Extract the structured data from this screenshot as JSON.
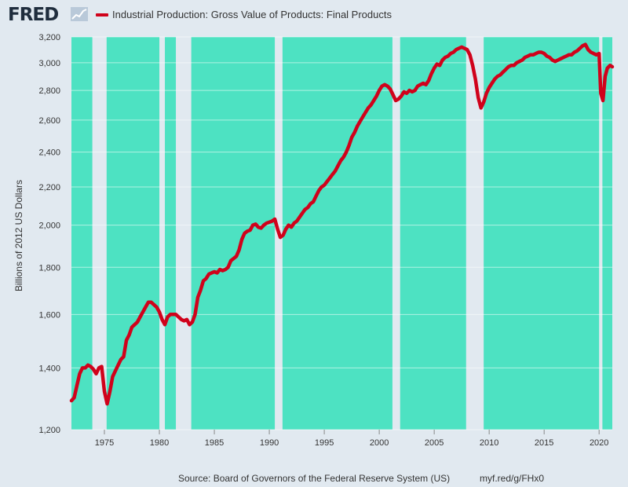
{
  "header": {
    "logo_text": "FRED",
    "legend_label": "Industrial Production: Gross Value of Products: Final Products",
    "series_color": "#d0021b"
  },
  "footer": {
    "source": "Source: Board of Governors of the Federal Reserve System (US)",
    "url": "myf.red/g/FHx0"
  },
  "chart_data": {
    "type": "line",
    "ylabel": "Billions of 2012 US Dollars",
    "yscale": "log",
    "ylim": [
      1200,
      3200
    ],
    "xlim": [
      1972.0,
      2021.2
    ],
    "yticks": [
      1200,
      1400,
      1600,
      1800,
      2000,
      2200,
      2400,
      2600,
      2800,
      3000,
      3200
    ],
    "ytick_labels": [
      "1,200",
      "1,400",
      "1,600",
      "1,800",
      "2,000",
      "2,200",
      "2,400",
      "2,600",
      "2,800",
      "3,000",
      "3,200"
    ],
    "xticks": [
      1975,
      1980,
      1985,
      1990,
      1995,
      2000,
      2005,
      2010,
      2015,
      2020
    ],
    "xtick_labels": [
      "1975",
      "1980",
      "1985",
      "1990",
      "1995",
      "2000",
      "2005",
      "2010",
      "2015",
      "2020"
    ],
    "plot_background": "#4de2c2",
    "recession_color": "#e1e9f0",
    "grid": true,
    "recessions": [
      [
        1973.9,
        1975.2
      ],
      [
        1980.0,
        1980.5
      ],
      [
        1981.5,
        1982.9
      ],
      [
        1990.5,
        1991.2
      ],
      [
        2001.2,
        2001.9
      ],
      [
        2007.9,
        2009.5
      ],
      [
        2020.0,
        2020.3
      ]
    ],
    "series": [
      {
        "color": "#d0021b",
        "points": [
          [
            1972.0,
            1290
          ],
          [
            1972.25,
            1300
          ],
          [
            1972.5,
            1340
          ],
          [
            1972.75,
            1380
          ],
          [
            1973.0,
            1400
          ],
          [
            1973.25,
            1400
          ],
          [
            1973.5,
            1410
          ],
          [
            1973.75,
            1405
          ],
          [
            1974.0,
            1395
          ],
          [
            1974.25,
            1380
          ],
          [
            1974.5,
            1400
          ],
          [
            1974.75,
            1405
          ],
          [
            1975.0,
            1320
          ],
          [
            1975.25,
            1280
          ],
          [
            1975.5,
            1320
          ],
          [
            1975.75,
            1370
          ],
          [
            1976.0,
            1390
          ],
          [
            1976.25,
            1410
          ],
          [
            1976.5,
            1430
          ],
          [
            1976.75,
            1440
          ],
          [
            1977.0,
            1500
          ],
          [
            1977.25,
            1520
          ],
          [
            1977.5,
            1550
          ],
          [
            1977.75,
            1560
          ],
          [
            1978.0,
            1570
          ],
          [
            1978.25,
            1590
          ],
          [
            1978.5,
            1610
          ],
          [
            1978.75,
            1630
          ],
          [
            1979.0,
            1650
          ],
          [
            1979.25,
            1650
          ],
          [
            1979.5,
            1640
          ],
          [
            1979.75,
            1630
          ],
          [
            1980.0,
            1610
          ],
          [
            1980.25,
            1580
          ],
          [
            1980.5,
            1560
          ],
          [
            1980.75,
            1590
          ],
          [
            1981.0,
            1600
          ],
          [
            1981.25,
            1600
          ],
          [
            1981.5,
            1600
          ],
          [
            1981.75,
            1590
          ],
          [
            1982.0,
            1580
          ],
          [
            1982.25,
            1575
          ],
          [
            1982.5,
            1580
          ],
          [
            1982.75,
            1560
          ],
          [
            1983.0,
            1570
          ],
          [
            1983.25,
            1600
          ],
          [
            1983.5,
            1670
          ],
          [
            1983.75,
            1700
          ],
          [
            1984.0,
            1740
          ],
          [
            1984.25,
            1750
          ],
          [
            1984.5,
            1770
          ],
          [
            1984.75,
            1775
          ],
          [
            1985.0,
            1780
          ],
          [
            1985.25,
            1775
          ],
          [
            1985.5,
            1790
          ],
          [
            1985.75,
            1785
          ],
          [
            1986.0,
            1790
          ],
          [
            1986.25,
            1800
          ],
          [
            1986.5,
            1830
          ],
          [
            1986.75,
            1840
          ],
          [
            1987.0,
            1850
          ],
          [
            1987.25,
            1880
          ],
          [
            1987.5,
            1930
          ],
          [
            1987.75,
            1960
          ],
          [
            1988.0,
            1970
          ],
          [
            1988.25,
            1975
          ],
          [
            1988.5,
            2000
          ],
          [
            1988.75,
            2005
          ],
          [
            1989.0,
            1990
          ],
          [
            1989.25,
            1985
          ],
          [
            1989.5,
            2000
          ],
          [
            1989.75,
            2010
          ],
          [
            1990.0,
            2015
          ],
          [
            1990.25,
            2020
          ],
          [
            1990.5,
            2030
          ],
          [
            1990.75,
            1980
          ],
          [
            1991.0,
            1940
          ],
          [
            1991.25,
            1950
          ],
          [
            1991.5,
            1980
          ],
          [
            1991.75,
            2000
          ],
          [
            1992.0,
            1990
          ],
          [
            1992.25,
            2010
          ],
          [
            1992.5,
            2020
          ],
          [
            1992.75,
            2040
          ],
          [
            1993.0,
            2060
          ],
          [
            1993.25,
            2080
          ],
          [
            1993.5,
            2090
          ],
          [
            1993.75,
            2110
          ],
          [
            1994.0,
            2120
          ],
          [
            1994.25,
            2150
          ],
          [
            1994.5,
            2180
          ],
          [
            1994.75,
            2200
          ],
          [
            1995.0,
            2210
          ],
          [
            1995.25,
            2230
          ],
          [
            1995.5,
            2250
          ],
          [
            1995.75,
            2270
          ],
          [
            1996.0,
            2290
          ],
          [
            1996.25,
            2320
          ],
          [
            1996.5,
            2350
          ],
          [
            1996.75,
            2370
          ],
          [
            1997.0,
            2400
          ],
          [
            1997.25,
            2440
          ],
          [
            1997.5,
            2490
          ],
          [
            1997.75,
            2520
          ],
          [
            1998.0,
            2560
          ],
          [
            1998.25,
            2590
          ],
          [
            1998.5,
            2620
          ],
          [
            1998.75,
            2650
          ],
          [
            1999.0,
            2680
          ],
          [
            1999.25,
            2700
          ],
          [
            1999.5,
            2730
          ],
          [
            1999.75,
            2760
          ],
          [
            2000.0,
            2800
          ],
          [
            2000.25,
            2830
          ],
          [
            2000.5,
            2840
          ],
          [
            2000.75,
            2830
          ],
          [
            2001.0,
            2810
          ],
          [
            2001.25,
            2770
          ],
          [
            2001.5,
            2730
          ],
          [
            2001.75,
            2740
          ],
          [
            2002.0,
            2760
          ],
          [
            2002.25,
            2790
          ],
          [
            2002.5,
            2780
          ],
          [
            2002.75,
            2800
          ],
          [
            2003.0,
            2790
          ],
          [
            2003.25,
            2800
          ],
          [
            2003.5,
            2830
          ],
          [
            2003.75,
            2840
          ],
          [
            2004.0,
            2850
          ],
          [
            2004.25,
            2840
          ],
          [
            2004.5,
            2870
          ],
          [
            2004.75,
            2920
          ],
          [
            2005.0,
            2960
          ],
          [
            2005.25,
            2990
          ],
          [
            2005.5,
            2980
          ],
          [
            2005.75,
            3020
          ],
          [
            2006.0,
            3040
          ],
          [
            2006.25,
            3050
          ],
          [
            2006.5,
            3070
          ],
          [
            2006.75,
            3080
          ],
          [
            2007.0,
            3100
          ],
          [
            2007.25,
            3110
          ],
          [
            2007.5,
            3120
          ],
          [
            2007.75,
            3110
          ],
          [
            2008.0,
            3100
          ],
          [
            2008.25,
            3060
          ],
          [
            2008.5,
            2980
          ],
          [
            2008.75,
            2880
          ],
          [
            2009.0,
            2750
          ],
          [
            2009.25,
            2680
          ],
          [
            2009.5,
            2720
          ],
          [
            2009.75,
            2780
          ],
          [
            2010.0,
            2820
          ],
          [
            2010.25,
            2850
          ],
          [
            2010.5,
            2880
          ],
          [
            2010.75,
            2900
          ],
          [
            2011.0,
            2910
          ],
          [
            2011.25,
            2930
          ],
          [
            2011.5,
            2950
          ],
          [
            2011.75,
            2970
          ],
          [
            2012.0,
            2980
          ],
          [
            2012.25,
            2980
          ],
          [
            2012.5,
            3000
          ],
          [
            2012.75,
            3010
          ],
          [
            2013.0,
            3020
          ],
          [
            2013.25,
            3040
          ],
          [
            2013.5,
            3050
          ],
          [
            2013.75,
            3060
          ],
          [
            2014.0,
            3060
          ],
          [
            2014.25,
            3070
          ],
          [
            2014.5,
            3080
          ],
          [
            2014.75,
            3080
          ],
          [
            2015.0,
            3070
          ],
          [
            2015.25,
            3050
          ],
          [
            2015.5,
            3040
          ],
          [
            2015.75,
            3020
          ],
          [
            2016.0,
            3010
          ],
          [
            2016.25,
            3020
          ],
          [
            2016.5,
            3030
          ],
          [
            2016.75,
            3040
          ],
          [
            2017.0,
            3050
          ],
          [
            2017.25,
            3060
          ],
          [
            2017.5,
            3060
          ],
          [
            2017.75,
            3080
          ],
          [
            2018.0,
            3090
          ],
          [
            2018.25,
            3110
          ],
          [
            2018.5,
            3130
          ],
          [
            2018.75,
            3140
          ],
          [
            2019.0,
            3100
          ],
          [
            2019.25,
            3080
          ],
          [
            2019.5,
            3070
          ],
          [
            2019.75,
            3060
          ],
          [
            2020.0,
            3070
          ],
          [
            2020.15,
            2780
          ],
          [
            2020.35,
            2730
          ],
          [
            2020.55,
            2900
          ],
          [
            2020.75,
            2960
          ],
          [
            2021.0,
            2980
          ],
          [
            2021.2,
            2970
          ]
        ]
      }
    ]
  }
}
